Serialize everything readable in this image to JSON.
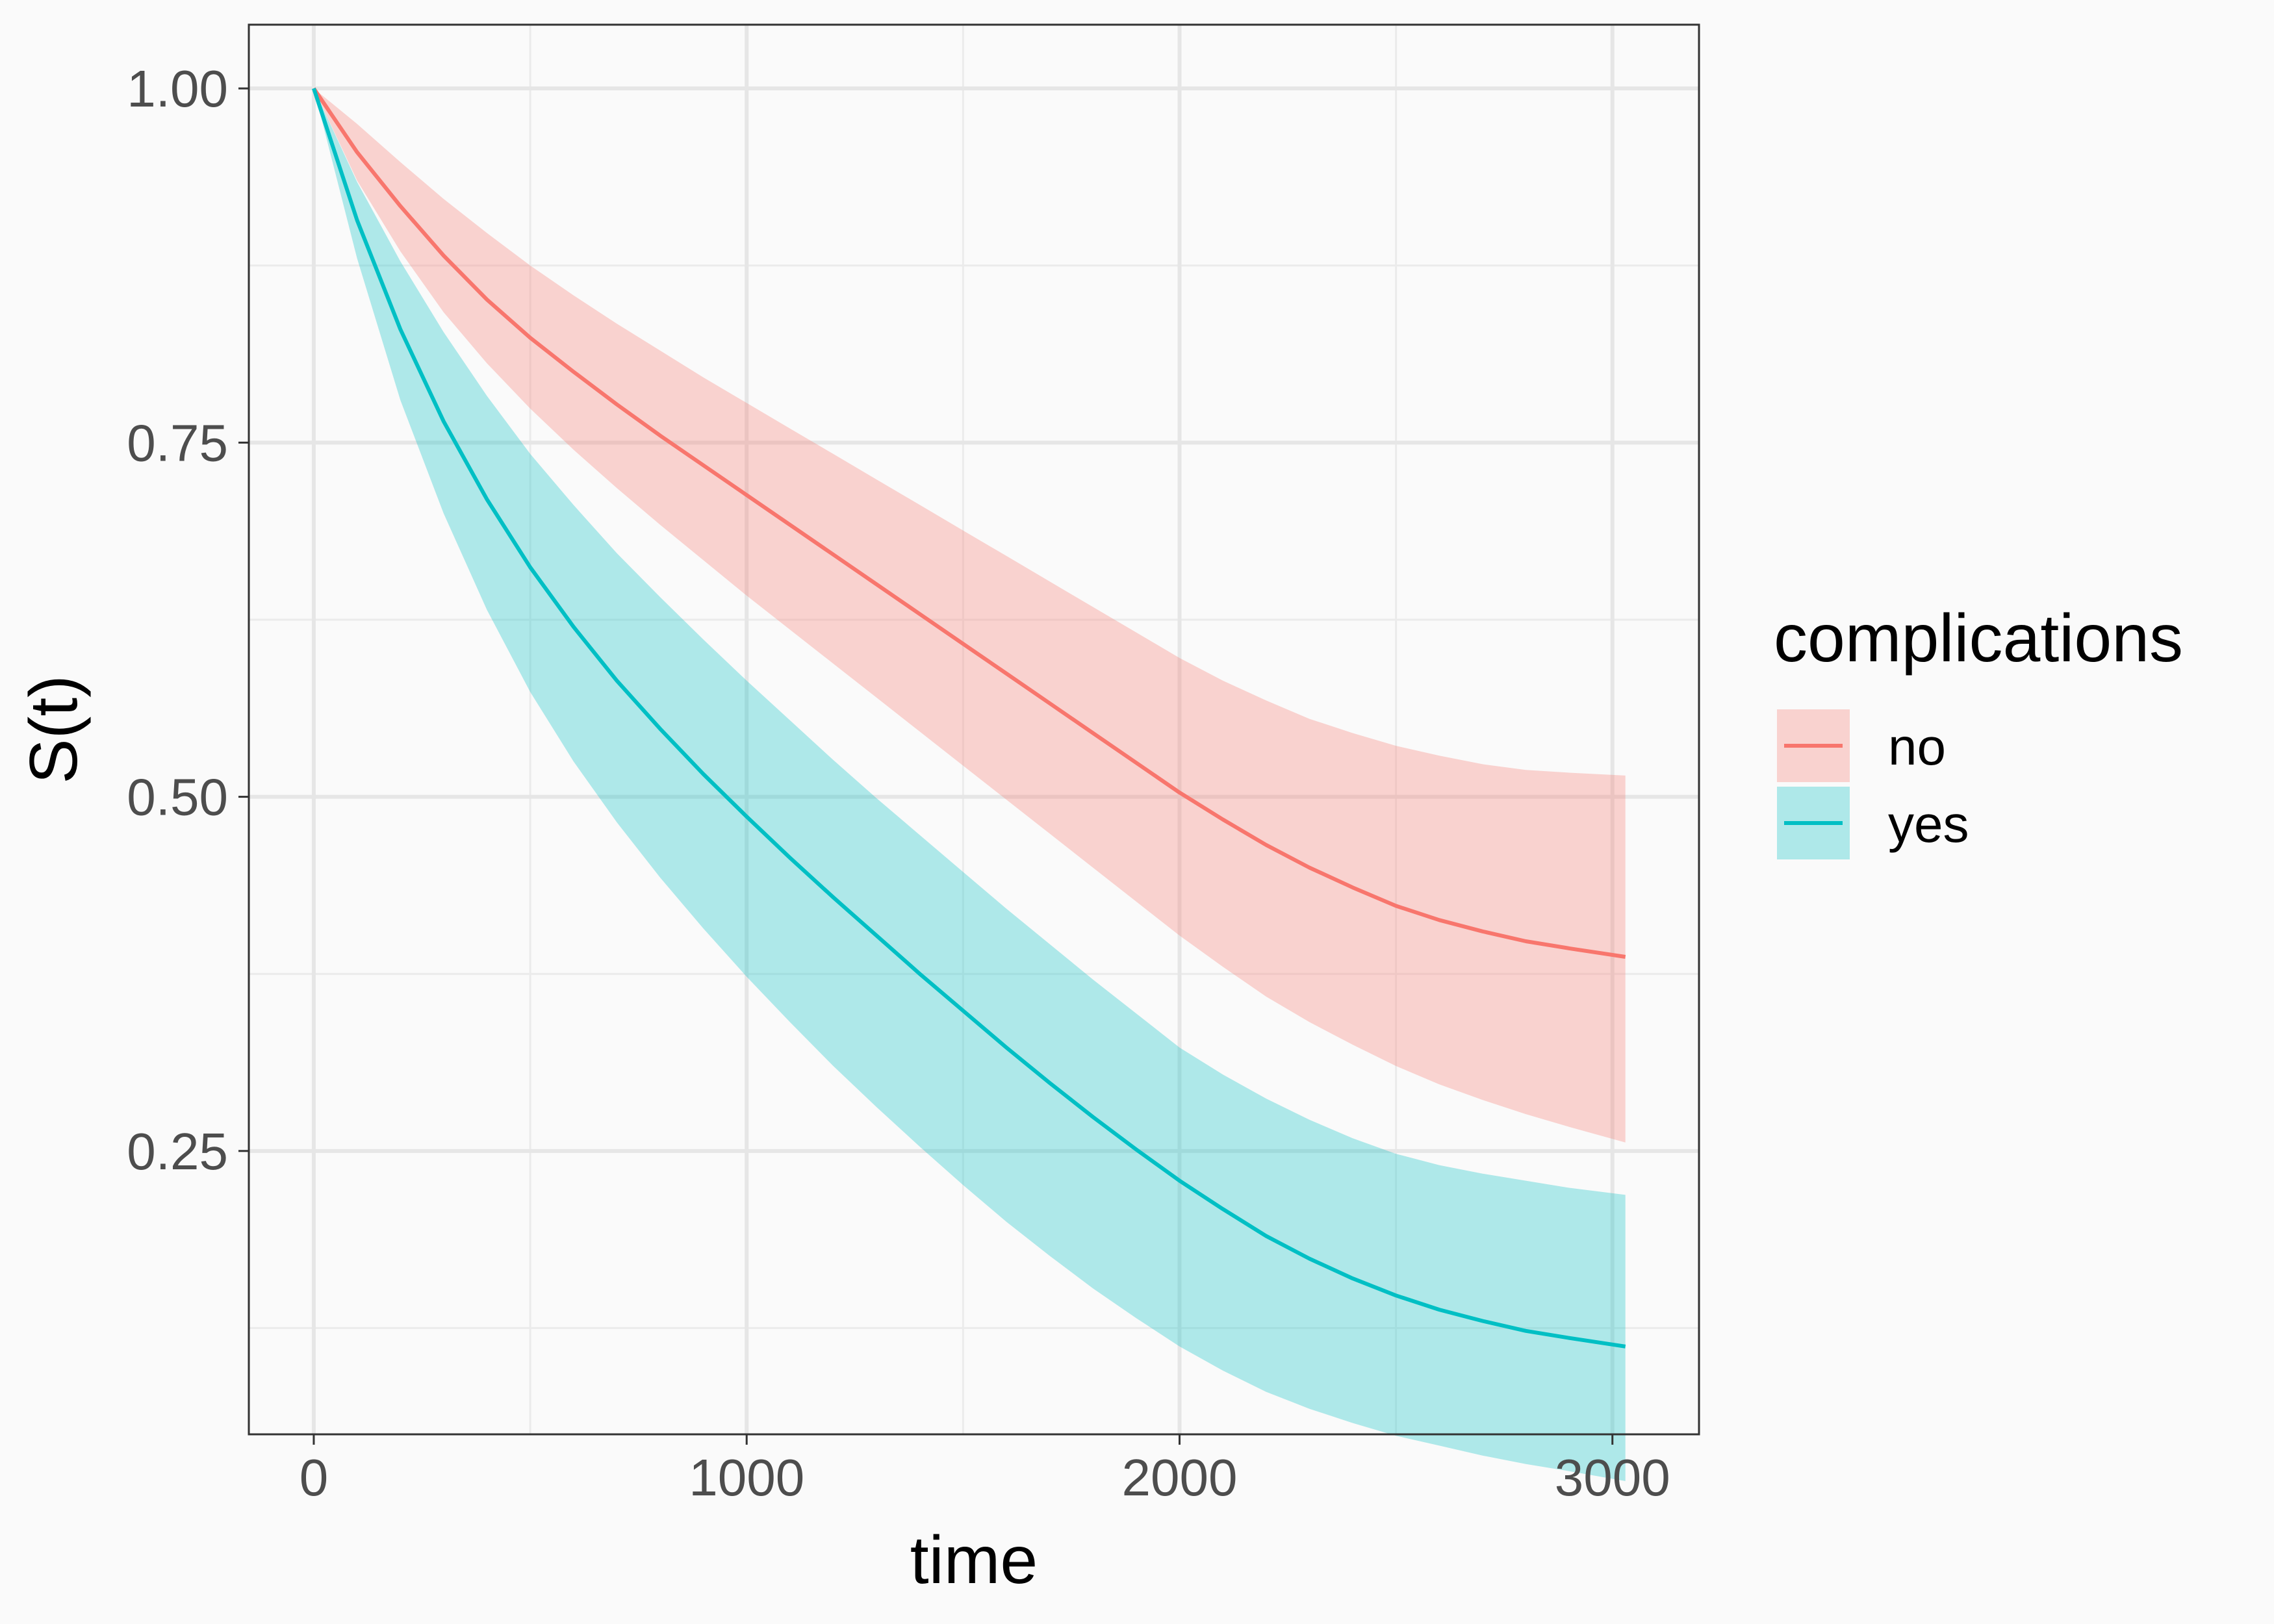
{
  "chart_data": {
    "type": "line",
    "xlabel": "time",
    "ylabel": "S(t)",
    "xlim": [
      -150,
      3200
    ],
    "ylim": [
      0.05,
      1.045
    ],
    "x_ticks": [
      0,
      1000,
      2000,
      3000
    ],
    "x_tick_labels": [
      "0",
      "1000",
      "2000",
      "3000"
    ],
    "y_ticks": [
      0.25,
      0.5,
      0.75,
      1.0
    ],
    "y_tick_labels": [
      "0.25",
      "0.50",
      "0.75",
      "1.00"
    ],
    "grid": true,
    "legend": {
      "title": "complications",
      "position": "right"
    },
    "series": [
      {
        "name": "no",
        "color": "#F8766D",
        "x": [
          0,
          100,
          200,
          300,
          400,
          500,
          600,
          700,
          800,
          900,
          1000,
          1100,
          1200,
          1300,
          1400,
          1500,
          1600,
          1700,
          1800,
          1900,
          2000,
          2100,
          2200,
          2300,
          2400,
          2500,
          2600,
          2700,
          2800,
          2900,
          3030
        ],
        "y": [
          1.0,
          0.955,
          0.917,
          0.882,
          0.851,
          0.824,
          0.8,
          0.777,
          0.755,
          0.734,
          0.713,
          0.692,
          0.671,
          0.65,
          0.629,
          0.608,
          0.587,
          0.566,
          0.545,
          0.524,
          0.503,
          0.484,
          0.466,
          0.45,
          0.436,
          0.423,
          0.413,
          0.405,
          0.398,
          0.393,
          0.387
        ],
        "lower": [
          1.0,
          0.935,
          0.885,
          0.842,
          0.806,
          0.774,
          0.745,
          0.718,
          0.692,
          0.667,
          0.642,
          0.618,
          0.594,
          0.57,
          0.546,
          0.522,
          0.498,
          0.474,
          0.45,
          0.426,
          0.402,
          0.38,
          0.359,
          0.341,
          0.325,
          0.31,
          0.297,
          0.286,
          0.276,
          0.267,
          0.256
        ],
        "upper": [
          1.0,
          0.975,
          0.948,
          0.922,
          0.898,
          0.875,
          0.854,
          0.834,
          0.815,
          0.796,
          0.778,
          0.76,
          0.742,
          0.724,
          0.706,
          0.688,
          0.67,
          0.652,
          0.634,
          0.616,
          0.598,
          0.582,
          0.568,
          0.555,
          0.545,
          0.536,
          0.529,
          0.523,
          0.519,
          0.517,
          0.515
        ]
      },
      {
        "name": "yes",
        "color": "#00BFC4",
        "x": [
          0,
          100,
          200,
          300,
          400,
          500,
          600,
          700,
          800,
          900,
          1000,
          1100,
          1200,
          1300,
          1400,
          1500,
          1600,
          1700,
          1800,
          1900,
          2000,
          2100,
          2200,
          2300,
          2400,
          2500,
          2600,
          2700,
          2800,
          2900,
          3030
        ],
        "y": [
          1.0,
          0.907,
          0.83,
          0.765,
          0.71,
          0.662,
          0.62,
          0.582,
          0.548,
          0.516,
          0.486,
          0.457,
          0.429,
          0.402,
          0.375,
          0.349,
          0.323,
          0.298,
          0.274,
          0.251,
          0.229,
          0.209,
          0.19,
          0.174,
          0.16,
          0.148,
          0.138,
          0.13,
          0.123,
          0.118,
          0.112
        ],
        "lower": [
          1.0,
          0.88,
          0.78,
          0.7,
          0.632,
          0.574,
          0.525,
          0.482,
          0.443,
          0.407,
          0.373,
          0.341,
          0.31,
          0.281,
          0.253,
          0.226,
          0.2,
          0.176,
          0.153,
          0.132,
          0.112,
          0.095,
          0.08,
          0.068,
          0.058,
          0.049,
          0.042,
          0.035,
          0.029,
          0.024,
          0.017
        ],
        "upper": [
          1.0,
          0.934,
          0.878,
          0.828,
          0.783,
          0.742,
          0.706,
          0.672,
          0.641,
          0.611,
          0.582,
          0.554,
          0.526,
          0.499,
          0.473,
          0.447,
          0.421,
          0.396,
          0.371,
          0.347,
          0.323,
          0.304,
          0.287,
          0.272,
          0.259,
          0.248,
          0.24,
          0.234,
          0.229,
          0.224,
          0.219
        ]
      }
    ]
  }
}
